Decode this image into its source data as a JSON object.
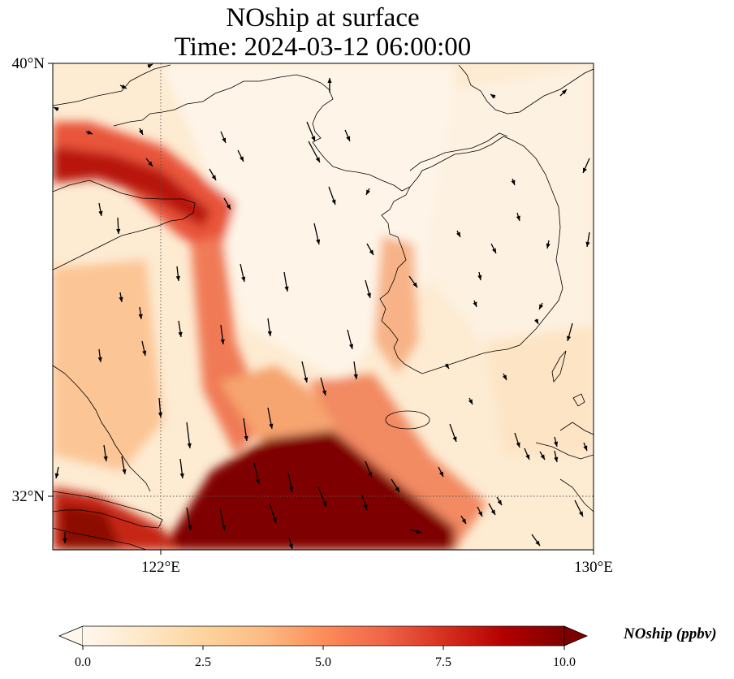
{
  "title": {
    "line1": "NOship at surface",
    "line2": "Time: 2024-03-12 06:00:00"
  },
  "map": {
    "variable": "NOship",
    "units": "ppbv",
    "lat_ticks": [
      "40°N",
      "32°N"
    ],
    "lon_ticks": [
      "122°E",
      "130°E"
    ],
    "lon_range": [
      120,
      130
    ],
    "lat_range": [
      31,
      40
    ],
    "gridlines": "dotted at 122°E and 32°N",
    "wind_vectors": "present, mostly southward flow over the Yellow Sea",
    "colormap": "OrRd"
  },
  "colorbar": {
    "label": "NOship (ppbv)",
    "ticks": [
      "0.0",
      "2.5",
      "5.0",
      "7.5",
      "10.0"
    ],
    "range": [
      0,
      10
    ],
    "extend": "both",
    "colors": [
      "#fff7ec",
      "#fee8c8",
      "#fdd49e",
      "#fdbb84",
      "#fc8d59",
      "#ef6548",
      "#d7301f",
      "#b30000",
      "#7f0000"
    ]
  }
}
